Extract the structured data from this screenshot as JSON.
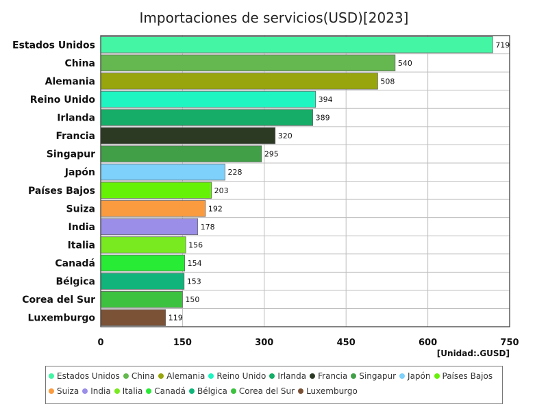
{
  "chart_data": {
    "type": "bar",
    "orientation": "horizontal",
    "title": "Importaciones de servicios(USD)[2023]",
    "unit_label": "[Unidad:.GUSD]",
    "categories": [
      "Estados Unidos",
      "China",
      "Alemania",
      "Reino Unido",
      "Irlanda",
      "Francia",
      "Singapur",
      "Japón",
      "Países Bajos",
      "Suiza",
      "India",
      "Italia",
      "Canadá",
      "Bélgica",
      "Corea del Sur",
      "Luxemburgo"
    ],
    "values": [
      719,
      540,
      508,
      394,
      389,
      320,
      295,
      228,
      203,
      192,
      178,
      156,
      154,
      153,
      150,
      119
    ],
    "colors": [
      "#44f5a4",
      "#64b84f",
      "#98a50c",
      "#1ef5c0",
      "#15ad67",
      "#2c3a24",
      "#41a047",
      "#7ed1fb",
      "#66f207",
      "#fb9b40",
      "#9a8ee8",
      "#79ea20",
      "#27eb35",
      "#11b57b",
      "#3cc23e",
      "#7b5236"
    ],
    "xlim": [
      0,
      750
    ],
    "xticks": [
      "0",
      "150",
      "300",
      "450",
      "600",
      "750"
    ],
    "legend_position": "bottom",
    "grid": true
  }
}
